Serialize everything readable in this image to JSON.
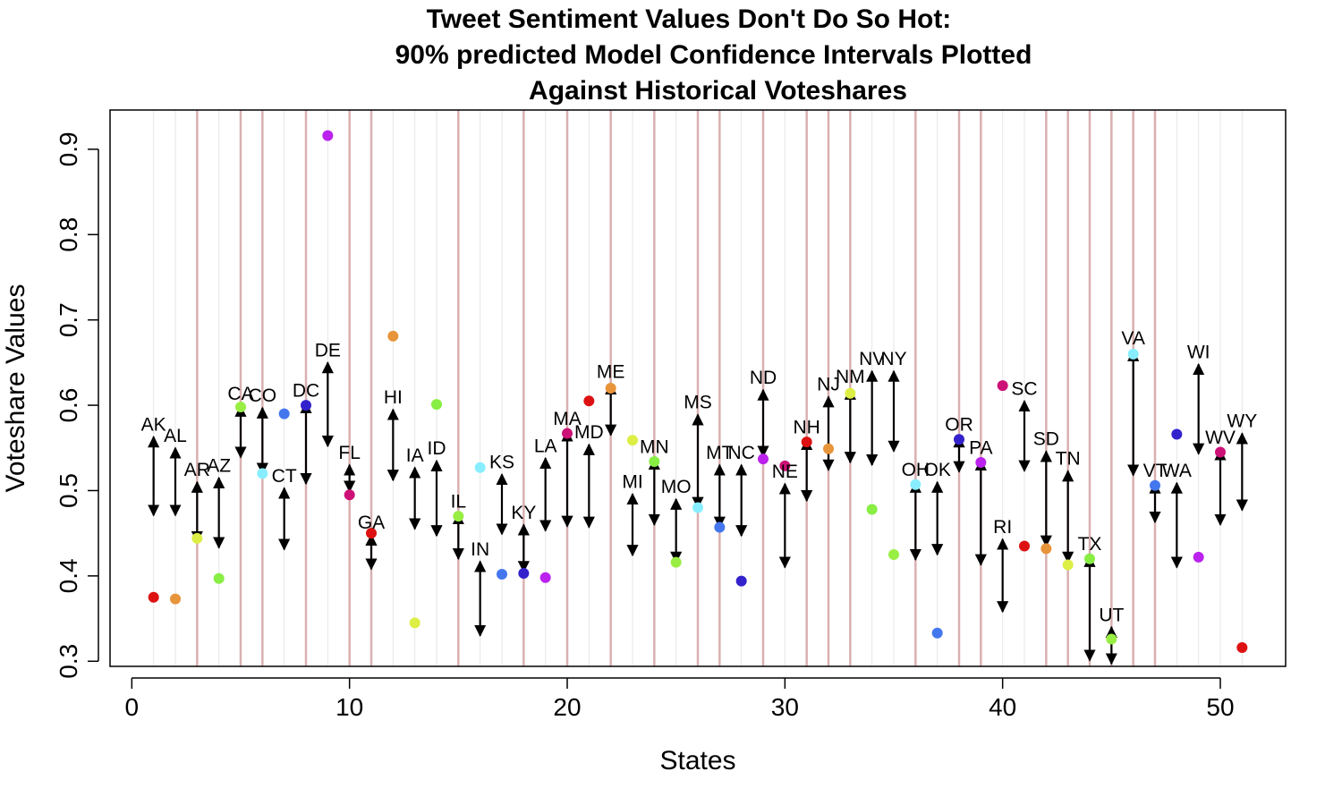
{
  "chart_data": {
    "type": "scatter",
    "title_lines": [
      "Tweet Sentiment Values Don't Do So Hot:",
      "90% predicted Model Confidence Intervals Plotted",
      "Against Historical Voteshares"
    ],
    "xlabel": "States",
    "ylabel": "Voteshare Values",
    "xlim": [
      -1,
      53
    ],
    "ylim": [
      0.294,
      0.946
    ],
    "x_ticks": [
      0,
      10,
      20,
      30,
      40,
      50
    ],
    "x_tick_labels": [
      "0",
      "10",
      "20",
      "30",
      "40",
      "50"
    ],
    "y_ticks": [
      0.3,
      0.4,
      0.5,
      0.6,
      0.7,
      0.8,
      0.9
    ],
    "y_tick_labels": [
      "0.3",
      "0.4",
      "0.5",
      "0.6",
      "0.7",
      "0.8",
      "0.9"
    ],
    "grid_lines_x": [
      1,
      2,
      3,
      4,
      5,
      6,
      7,
      8,
      9,
      10,
      11,
      12,
      13,
      14,
      15,
      16,
      17,
      18,
      19,
      20,
      21,
      22,
      23,
      24,
      25,
      26,
      27,
      28,
      29,
      30,
      31,
      32,
      33,
      34,
      35,
      36,
      37,
      38,
      39,
      40,
      41,
      42,
      43,
      44,
      45,
      46,
      47,
      48,
      49,
      50,
      51
    ],
    "highlight_lines_x": [
      3,
      5,
      6,
      8,
      10,
      11,
      15,
      18,
      20,
      22,
      24,
      26,
      27,
      29,
      31,
      32,
      33,
      36,
      38,
      39,
      42,
      43,
      44,
      45,
      46,
      47
    ],
    "colors": {
      "grid": "#e6e6e6",
      "highlight": "#d9b0b0",
      "interval": "#000000"
    },
    "states": [
      {
        "x": 1,
        "label": "AK",
        "point": 0.375,
        "color": "#dd1111",
        "lo": 0.471,
        "hi": 0.563,
        "label_y": 0.576
      },
      {
        "x": 2,
        "label": "AL",
        "point": 0.373,
        "color": "#e8943a",
        "lo": 0.471,
        "hi": 0.55,
        "label_y": 0.563
      },
      {
        "x": 3,
        "label": "AR",
        "point": 0.444,
        "color": "#ddee44",
        "lo": 0.44,
        "hi": 0.51,
        "label_y": 0.523
      },
      {
        "x": 4,
        "label": "AZ",
        "point": 0.397,
        "color": "#88ee44",
        "lo": 0.433,
        "hi": 0.515,
        "label_y": 0.528
      },
      {
        "x": 5,
        "label": "CA",
        "point": 0.598,
        "color": "#99ee44",
        "lo": 0.539,
        "hi": 0.599,
        "label_y": 0.612
      },
      {
        "x": 6,
        "label": "CO",
        "point": 0.52,
        "color": "#88eeff",
        "lo": 0.52,
        "hi": 0.597,
        "label_y": 0.61
      },
      {
        "x": 7,
        "label": "CT",
        "point": 0.59,
        "color": "#4477ee",
        "lo": 0.431,
        "hi": 0.503,
        "label_y": 0.516
      },
      {
        "x": 8,
        "label": "DC",
        "point": 0.6,
        "color": "#3322cc",
        "lo": 0.508,
        "hi": 0.603,
        "label_y": 0.616
      },
      {
        "x": 9,
        "label": "DE",
        "point": 0.916,
        "color": "#bb22ee",
        "lo": 0.552,
        "hi": 0.65,
        "label_y": 0.663
      },
      {
        "x": 10,
        "label": "FL",
        "point": 0.495,
        "color": "#cc1177",
        "lo": 0.499,
        "hi": 0.53,
        "label_y": 0.543
      },
      {
        "x": 11,
        "label": "GA",
        "point": 0.45,
        "color": "#dd1111",
        "lo": 0.408,
        "hi": 0.448,
        "label_y": 0.461
      },
      {
        "x": 12,
        "label": "HI",
        "point": 0.681,
        "color": "#e8943a",
        "lo": 0.512,
        "hi": 0.595,
        "label_y": 0.608
      },
      {
        "x": 13,
        "label": "IA",
        "point": 0.345,
        "color": "#ddee44",
        "lo": 0.455,
        "hi": 0.527,
        "label_y": 0.54
      },
      {
        "x": 14,
        "label": "ID",
        "point": 0.601,
        "color": "#88ee44",
        "lo": 0.447,
        "hi": 0.535,
        "label_y": 0.548
      },
      {
        "x": 15,
        "label": "IL",
        "point": 0.47,
        "color": "#99ee44",
        "lo": 0.42,
        "hi": 0.473,
        "label_y": 0.486
      },
      {
        "x": 16,
        "label": "IN",
        "point": 0.527,
        "color": "#88eeff",
        "lo": 0.33,
        "hi": 0.417,
        "label_y": 0.43
      },
      {
        "x": 17,
        "label": "KS",
        "point": 0.402,
        "color": "#4477ee",
        "lo": 0.449,
        "hi": 0.519,
        "label_y": 0.532
      },
      {
        "x": 18,
        "label": "KY",
        "point": 0.403,
        "color": "#3322cc",
        "lo": 0.405,
        "hi": 0.46,
        "label_y": 0.473
      },
      {
        "x": 19,
        "label": "LA",
        "point": 0.398,
        "color": "#bb22ee",
        "lo": 0.453,
        "hi": 0.538,
        "label_y": 0.551
      },
      {
        "x": 20,
        "label": "MA",
        "point": 0.567,
        "color": "#cc1177",
        "lo": 0.458,
        "hi": 0.57,
        "label_y": 0.583
      },
      {
        "x": 21,
        "label": "MD",
        "point": 0.605,
        "color": "#dd1111",
        "lo": 0.457,
        "hi": 0.554,
        "label_y": 0.567
      },
      {
        "x": 22,
        "label": "ME",
        "point": 0.62,
        "color": "#e8943a",
        "lo": 0.565,
        "hi": 0.625,
        "label_y": 0.638
      },
      {
        "x": 23,
        "label": "MI",
        "point": 0.559,
        "color": "#ddee44",
        "lo": 0.424,
        "hi": 0.496,
        "label_y": 0.509
      },
      {
        "x": 24,
        "label": "MN",
        "point": 0.534,
        "color": "#88ee44",
        "lo": 0.46,
        "hi": 0.537,
        "label_y": 0.55
      },
      {
        "x": 25,
        "label": "MO",
        "point": 0.416,
        "color": "#99ee44",
        "lo": 0.416,
        "hi": 0.49,
        "label_y": 0.503
      },
      {
        "x": 26,
        "label": "MS",
        "point": 0.48,
        "color": "#88eeff",
        "lo": 0.48,
        "hi": 0.589,
        "label_y": 0.602
      },
      {
        "x": 27,
        "label": "MT",
        "point": 0.457,
        "color": "#4477ee",
        "lo": 0.457,
        "hi": 0.53,
        "label_y": 0.543
      },
      {
        "x": 28,
        "label": "NC",
        "point": 0.394,
        "color": "#3322cc",
        "lo": 0.447,
        "hi": 0.53,
        "label_y": 0.543
      },
      {
        "x": 29,
        "label": "ND",
        "point": 0.537,
        "color": "#bb22ee",
        "lo": 0.54,
        "hi": 0.618,
        "label_y": 0.631
      },
      {
        "x": 30,
        "label": "NE",
        "point": 0.529,
        "color": "#cc1177",
        "lo": 0.41,
        "hi": 0.508,
        "label_y": 0.521
      },
      {
        "x": 31,
        "label": "NH",
        "point": 0.557,
        "color": "#dd1111",
        "lo": 0.488,
        "hi": 0.56,
        "label_y": 0.573
      },
      {
        "x": 32,
        "label": "NJ",
        "point": 0.549,
        "color": "#e8943a",
        "lo": 0.524,
        "hi": 0.61,
        "label_y": 0.623
      },
      {
        "x": 33,
        "label": "NM",
        "point": 0.614,
        "color": "#ddee44",
        "lo": 0.533,
        "hi": 0.619,
        "label_y": 0.632
      },
      {
        "x": 34,
        "label": "NV",
        "point": 0.478,
        "color": "#88ee44",
        "lo": 0.53,
        "hi": 0.64,
        "label_y": 0.653
      },
      {
        "x": 35,
        "label": "NY",
        "point": 0.425,
        "color": "#99ee44",
        "lo": 0.546,
        "hi": 0.64,
        "label_y": 0.653
      },
      {
        "x": 36,
        "label": "OH",
        "point": 0.507,
        "color": "#88eeff",
        "lo": 0.419,
        "hi": 0.51,
        "label_y": 0.523
      },
      {
        "x": 37,
        "label": "OK",
        "point": 0.333,
        "color": "#4477ee",
        "lo": 0.425,
        "hi": 0.51,
        "label_y": 0.523
      },
      {
        "x": 38,
        "label": "OR",
        "point": 0.56,
        "color": "#3322cc",
        "lo": 0.522,
        "hi": 0.563,
        "label_y": 0.576
      },
      {
        "x": 39,
        "label": "PA",
        "point": 0.533,
        "color": "#bb22ee",
        "lo": 0.413,
        "hi": 0.536,
        "label_y": 0.549
      },
      {
        "x": 40,
        "label": "RI",
        "point": 0.623,
        "color": "#cc1177",
        "lo": 0.358,
        "hi": 0.443,
        "label_y": 0.456
      },
      {
        "x": 41,
        "label": "SC",
        "point": 0.435,
        "color": "#dd1111",
        "lo": 0.523,
        "hi": 0.605,
        "label_y": 0.618
      },
      {
        "x": 42,
        "label": "SD",
        "point": 0.432,
        "color": "#e8943a",
        "lo": 0.435,
        "hi": 0.546,
        "label_y": 0.559
      },
      {
        "x": 43,
        "label": "TN",
        "point": 0.413,
        "color": "#ddee44",
        "lo": 0.416,
        "hi": 0.523,
        "label_y": 0.536
      },
      {
        "x": 44,
        "label": "TX",
        "point": 0.42,
        "color": "#88ee44",
        "lo": 0.301,
        "hi": 0.423,
        "label_y": 0.436
      },
      {
        "x": 45,
        "label": "UT",
        "point": 0.326,
        "color": "#99ee44",
        "lo": 0.297,
        "hi": 0.34,
        "label_y": 0.353
      },
      {
        "x": 46,
        "label": "VA",
        "point": 0.66,
        "color": "#88eeff",
        "lo": 0.518,
        "hi": 0.664,
        "label_y": 0.677
      },
      {
        "x": 47,
        "label": "VT",
        "point": 0.506,
        "color": "#4477ee",
        "lo": 0.463,
        "hi": 0.509,
        "label_y": 0.522
      },
      {
        "x": 48,
        "label": "WA",
        "point": 0.566,
        "color": "#3322cc",
        "lo": 0.41,
        "hi": 0.509,
        "label_y": 0.522
      },
      {
        "x": 49,
        "label": "WI",
        "point": 0.422,
        "color": "#bb22ee",
        "lo": 0.543,
        "hi": 0.648,
        "label_y": 0.661
      },
      {
        "x": 50,
        "label": "WV",
        "point": 0.545,
        "color": "#cc1177",
        "lo": 0.46,
        "hi": 0.548,
        "label_y": 0.561
      },
      {
        "x": 51,
        "label": "WY",
        "point": 0.316,
        "color": "#dd1111",
        "lo": 0.477,
        "hi": 0.567,
        "label_y": 0.58
      }
    ]
  }
}
